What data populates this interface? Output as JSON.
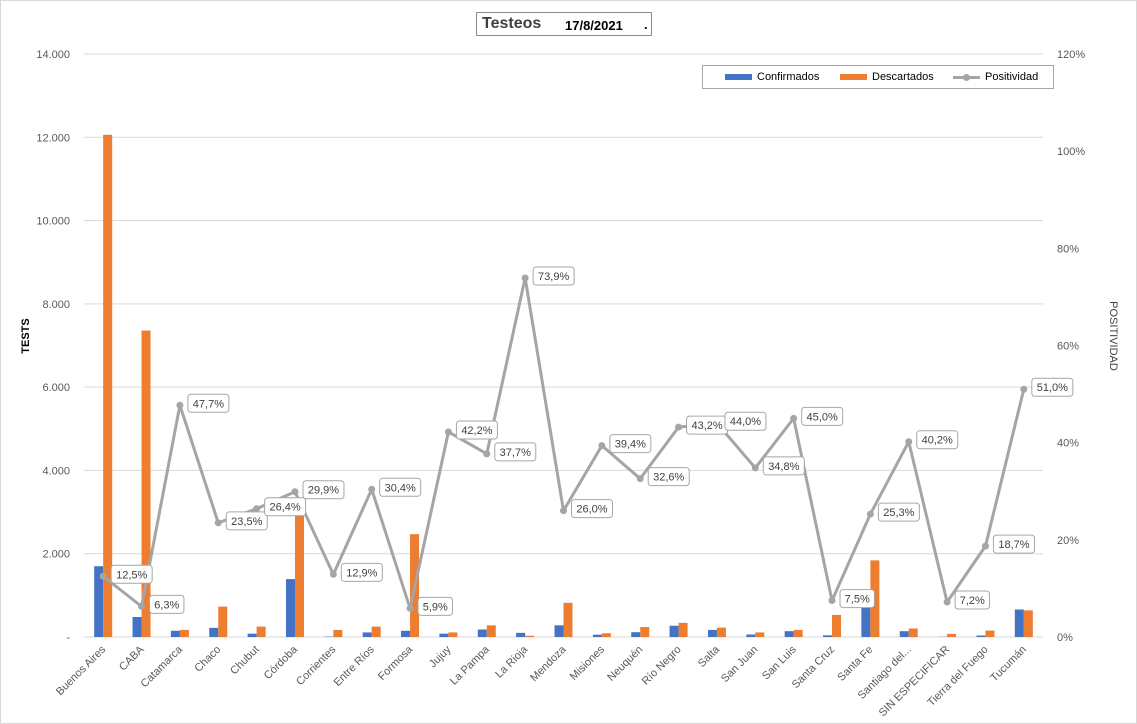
{
  "title": {
    "text": "Testeos",
    "date": "17/8/2021",
    "suffix": "."
  },
  "legend": {
    "confirmed_label": "Confirmados",
    "discarded_label": "Descartados",
    "positivity_label": "Positividad"
  },
  "axes": {
    "left_title": "TESTS",
    "right_title": "POSITIVIDAD",
    "left_ticks": [
      "-",
      "2.000",
      "4.000",
      "6.000",
      "8.000",
      "10.000",
      "12.000",
      "14.000"
    ],
    "right_ticks": [
      "0%",
      "20%",
      "40%",
      "60%",
      "80%",
      "100%",
      "120%"
    ]
  },
  "colors": {
    "confirmed": "#4472c4",
    "discarded": "#ed7d31",
    "positivity": "#a5a5a5",
    "grid": "#d9d9d9"
  },
  "chart_data": {
    "type": "bar",
    "categories": [
      "Buenos Aires",
      "CABA",
      "Catamarca",
      "Chaco",
      "Chubut",
      "Córdoba",
      "Corrientes",
      "Entre Ríos",
      "Formosa",
      "Jujuy",
      "La Pampa",
      "La Rioja",
      "Mendoza",
      "Misiones",
      "Neuquén",
      "Río Negro",
      "Salta",
      "San Juan",
      "San Luis",
      "Santa Cruz",
      "Santa Fe",
      "Santiago del...",
      "SIN ESPECIFICAR",
      "Tierra del Fuego",
      "Tucumán"
    ],
    "ylabel": "TESTS",
    "ylim": [
      0,
      14000
    ],
    "y2label": "POSITIVIDAD",
    "y2lim": [
      0,
      120
    ],
    "grid": true,
    "legend_position": "top-right",
    "series": [
      {
        "name": "Confirmados",
        "axis": "left",
        "type": "bar",
        "values": [
          1700,
          480,
          150,
          220,
          80,
          1390,
          10,
          110,
          150,
          80,
          180,
          100,
          280,
          55,
          115,
          270,
          170,
          60,
          140,
          40,
          900,
          140,
          5,
          35,
          660
        ]
      },
      {
        "name": "Descartados",
        "axis": "left",
        "type": "bar",
        "values": [
          12060,
          7360,
          170,
          730,
          250,
          3300,
          170,
          250,
          2470,
          110,
          280,
          30,
          820,
          90,
          240,
          340,
          225,
          110,
          170,
          530,
          1840,
          205,
          75,
          155,
          640
        ]
      },
      {
        "name": "Positividad",
        "axis": "right",
        "type": "line",
        "values": [
          12.5,
          6.3,
          47.7,
          23.5,
          26.4,
          29.9,
          12.9,
          30.4,
          5.9,
          42.2,
          37.7,
          73.9,
          26.0,
          39.4,
          32.6,
          43.2,
          44.0,
          34.8,
          45.0,
          7.5,
          25.3,
          40.2,
          7.2,
          18.7,
          51.0
        ],
        "labels": [
          "12,5%",
          "6,3%",
          "47,7%",
          "23,5%",
          "26,4%",
          "29,9%",
          "12,9%",
          "30,4%",
          "5,9%",
          "42,2%",
          "37,7%",
          "73,9%",
          "26,0%",
          "39,4%",
          "32,6%",
          "43,2%",
          "44,0%",
          "34,8%",
          "45,0%",
          "7,5%",
          "25,3%",
          "40,2%",
          "7,2%",
          "18,7%",
          "51,0%"
        ]
      }
    ]
  }
}
